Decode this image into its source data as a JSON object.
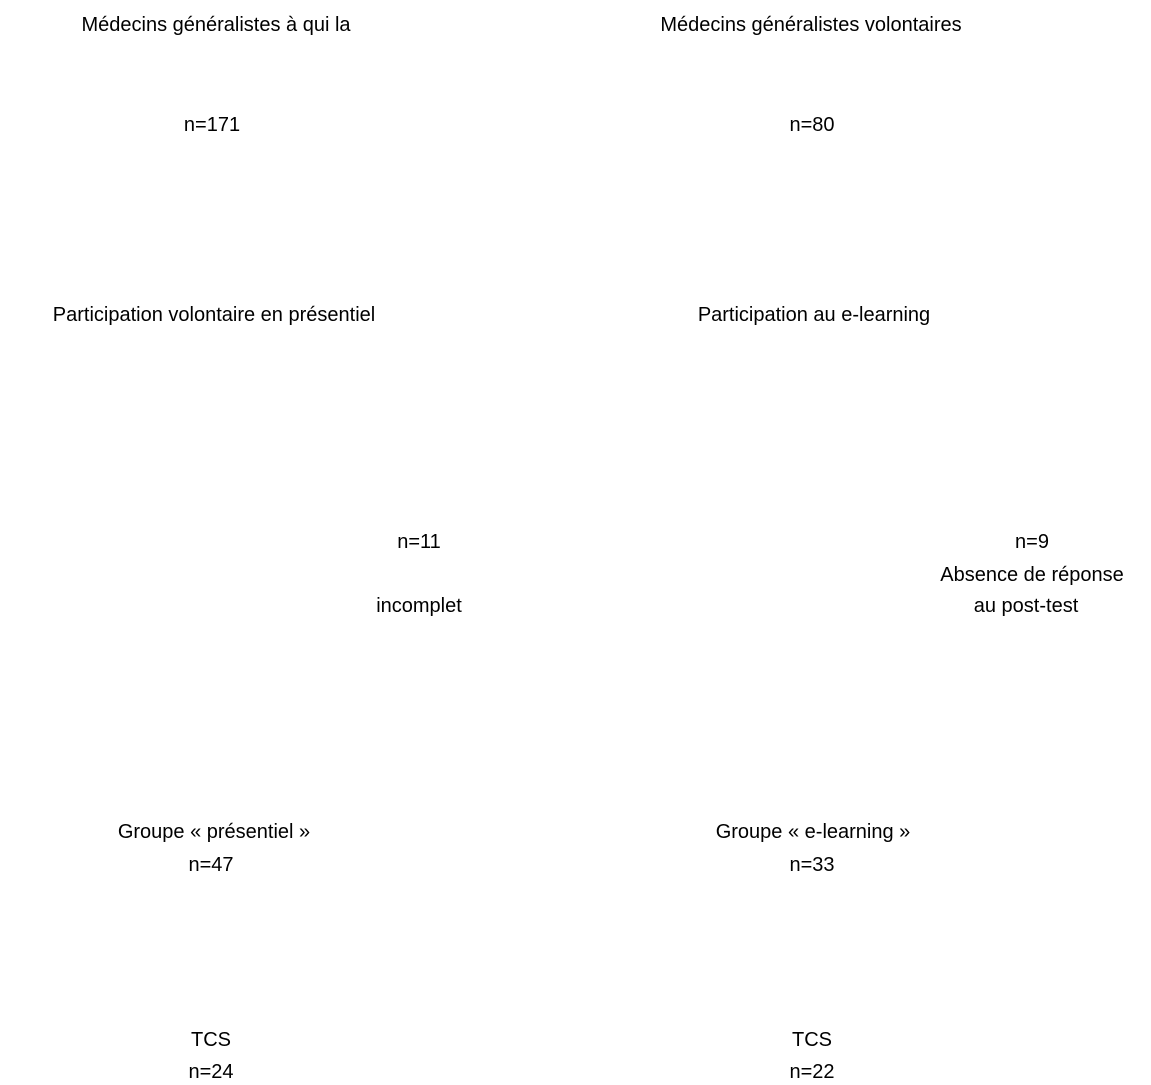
{
  "left_column": {
    "top_title": "Médecins généralistes à qui la",
    "top_count": "n=171",
    "participation": "Participation volontaire en présentiel",
    "excluded_count": "n=11",
    "excluded_reason": "incomplet",
    "group_label": "Groupe  « présentiel »",
    "group_count": "n=47",
    "tcs_label": "TCS",
    "tcs_count": "n=24"
  },
  "right_column": {
    "top_title": "Médecins généralistes volontaires",
    "top_count": "n=80",
    "participation": "Participation au e-learning",
    "excluded_count": "n=9",
    "excluded_reason_line1": "Absence de réponse",
    "excluded_reason_line2": "au post-test",
    "group_label": "Groupe  « e-learning »",
    "group_count": "n=33",
    "tcs_label": "TCS",
    "tcs_count": "n=22"
  }
}
